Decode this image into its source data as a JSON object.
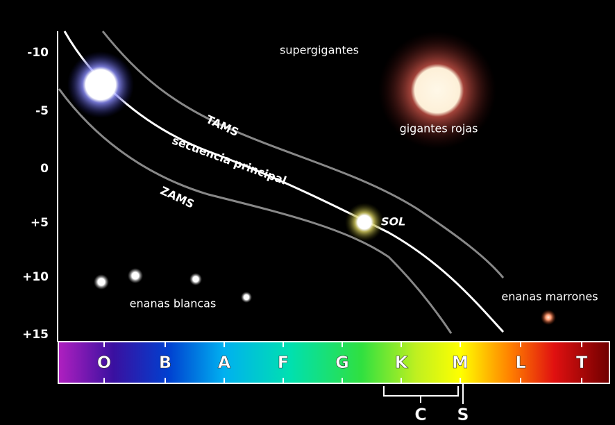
{
  "y_axis": {
    "labels": [
      "-10",
      "-5",
      "0",
      "+5",
      "+10",
      "+15"
    ]
  },
  "regions": {
    "supergiants": "supergigantes",
    "red_giants": "gigantes rojas",
    "white_dwarfs": "enanas blancas",
    "brown_dwarfs": "enanas marrones"
  },
  "curves": {
    "tams": "TAMS",
    "main_sequence": "secuencia principal",
    "zams": "ZAMS"
  },
  "sun": "SOL",
  "spectral_classes": [
    "O",
    "B",
    "A",
    "F",
    "G",
    "K",
    "M",
    "L",
    "T"
  ],
  "brackets": {
    "carbon": "C",
    "s_type": "S"
  }
}
